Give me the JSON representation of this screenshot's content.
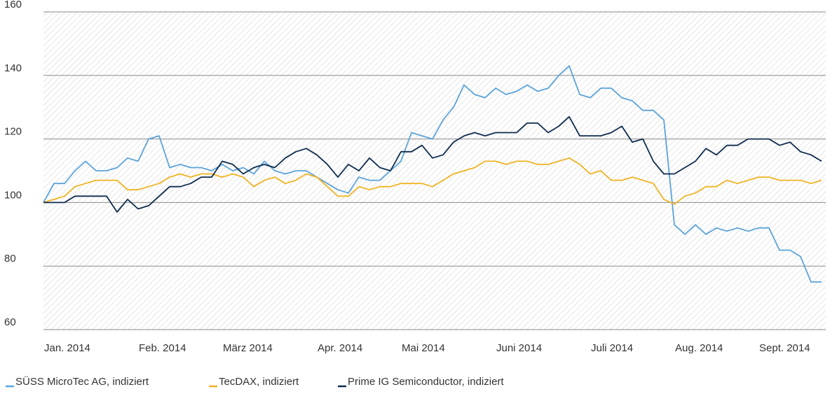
{
  "chart_data": {
    "type": "line",
    "categories": [
      "Jan. 2014",
      null,
      null,
      null,
      null,
      null,
      null,
      null,
      null,
      "Feb. 2014",
      null,
      null,
      null,
      null,
      null,
      null,
      null,
      "März 2014",
      null,
      null,
      null,
      null,
      null,
      null,
      null,
      null,
      "Apr. 2014",
      null,
      null,
      null,
      null,
      null,
      null,
      null,
      "Mai 2014",
      null,
      null,
      null,
      null,
      null,
      null,
      null,
      null,
      "Juni 2014",
      null,
      null,
      null,
      null,
      null,
      null,
      null,
      null,
      "Juli 2014",
      null,
      null,
      null,
      null,
      null,
      null,
      null,
      "Aug. 2014",
      null,
      null,
      null,
      null,
      null,
      null,
      null,
      "Sept. 2014",
      null,
      null,
      null,
      null,
      null,
      null
    ],
    "series": [
      {
        "name": "SÜSS MicroTec AG, indiziert",
        "color": "#5ba3d9",
        "values": [
          100,
          106,
          106,
          110,
          113,
          110,
          110,
          111,
          114,
          113,
          120,
          121,
          111,
          112,
          111,
          111,
          110,
          112,
          110,
          111,
          109,
          113,
          110,
          109,
          110,
          110,
          108,
          106,
          104,
          103,
          108,
          107,
          107,
          110,
          113,
          122,
          121,
          120,
          126,
          130,
          137,
          134,
          133,
          136,
          134,
          135,
          137,
          135,
          136,
          140,
          143,
          134,
          133,
          136,
          136,
          133,
          132,
          129,
          129,
          126,
          93,
          90,
          93,
          90,
          92,
          91,
          92,
          91,
          92,
          92,
          85,
          85,
          83,
          75,
          75
        ]
      },
      {
        "name": "TecDAX, indiziert",
        "color": "#f0b323",
        "values": [
          100,
          101,
          102,
          105,
          106,
          107,
          107,
          107,
          104,
          104,
          105,
          106,
          108,
          109,
          108,
          109,
          109,
          108,
          109,
          108,
          105,
          107,
          108,
          106,
          107,
          109,
          108,
          105,
          102,
          102,
          105,
          104,
          105,
          105,
          106,
          106,
          106,
          105,
          107,
          109,
          110,
          111,
          113,
          113,
          112,
          113,
          113,
          112,
          112,
          113,
          114,
          112,
          109,
          110,
          107,
          107,
          108,
          107,
          106,
          101,
          99.5,
          102,
          103,
          105,
          105,
          107,
          106,
          107,
          108,
          108,
          107,
          107,
          107,
          106,
          107
        ]
      },
      {
        "name": "Prime IG Semiconductor, indiziert",
        "color": "#0e2c4e",
        "values": [
          100,
          100,
          100,
          102,
          102,
          102,
          102,
          97,
          101,
          98,
          99,
          102,
          105,
          105,
          106,
          108,
          108,
          113,
          112,
          109,
          111,
          112,
          111,
          114,
          116,
          117,
          115,
          112,
          108,
          112,
          110,
          114,
          111,
          110,
          116,
          116,
          118,
          114,
          115,
          119,
          121,
          122,
          121,
          122,
          122,
          122,
          125,
          125,
          122,
          124,
          127,
          121,
          121,
          121,
          122,
          124,
          119,
          120,
          113,
          109,
          109,
          111,
          113,
          117,
          115,
          118,
          118,
          120,
          120,
          120,
          118,
          119,
          116,
          115,
          113
        ]
      }
    ],
    "ylim": [
      60,
      160
    ],
    "yticks": [
      60,
      80,
      100,
      120,
      140,
      160
    ],
    "grid": true
  }
}
